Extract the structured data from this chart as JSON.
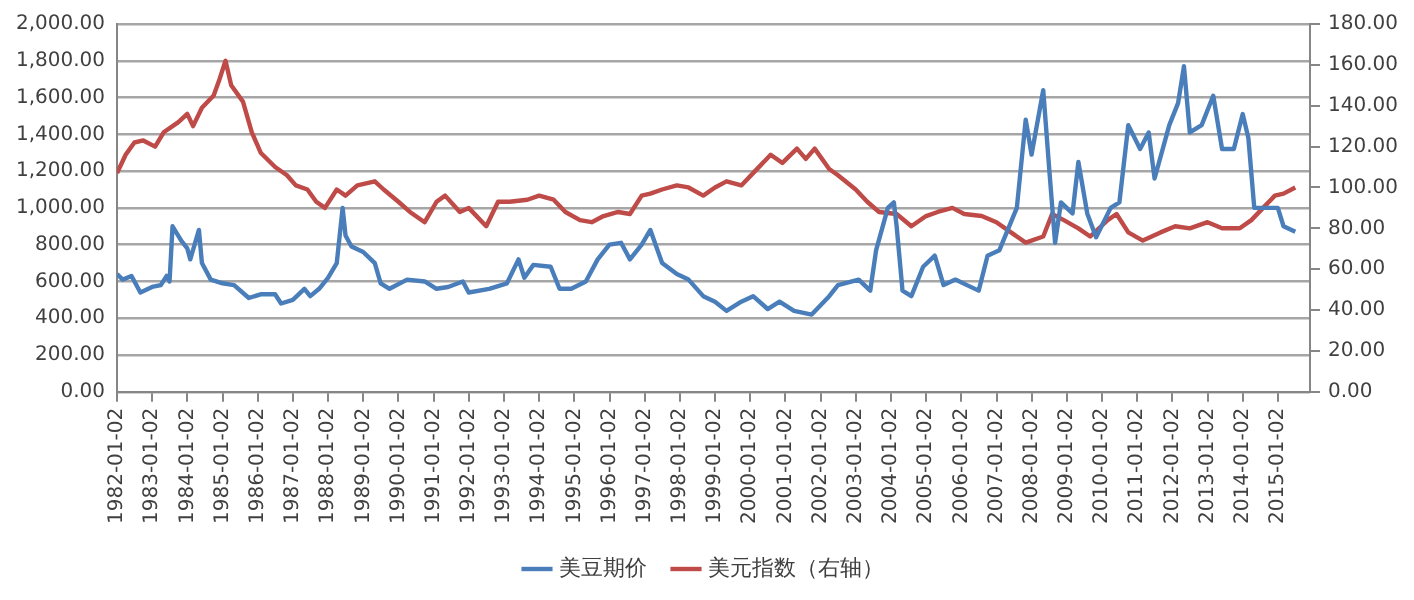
{
  "chart_data": {
    "type": "line",
    "xlim": [
      "1982-01-02",
      "2015-12"
    ],
    "xticks": [
      "1982-01-02",
      "1983-01-02",
      "1984-01-02",
      "1985-01-02",
      "1986-01-02",
      "1987-01-02",
      "1988-01-02",
      "1989-01-02",
      "1990-01-02",
      "1991-01-02",
      "1992-01-02",
      "1993-01-02",
      "1994-01-02",
      "1995-01-02",
      "1996-01-02",
      "1997-01-02",
      "1998-01-02",
      "1999-01-02",
      "2000-01-02",
      "2001-01-02",
      "2002-01-02",
      "2003-01-02",
      "2004-01-02",
      "2005-01-02",
      "2006-01-02",
      "2007-01-02",
      "2008-01-02",
      "2009-01-02",
      "2010-01-02",
      "2011-01-02",
      "2012-01-02",
      "2013-01-02",
      "2014-01-02",
      "2015-01-02"
    ],
    "ylim": [
      0,
      2000
    ],
    "yticks": [
      {
        "value": 0,
        "label": "0.00"
      },
      {
        "value": 200,
        "label": "200.00"
      },
      {
        "value": 400,
        "label": "400.00"
      },
      {
        "value": 600,
        "label": "600.00"
      },
      {
        "value": 800,
        "label": "800.00"
      },
      {
        "value": 1000,
        "label": "1,000.00"
      },
      {
        "value": 1200,
        "label": "1,200.00"
      },
      {
        "value": 1400,
        "label": "1,400.00"
      },
      {
        "value": 1600,
        "label": "1,600.00"
      },
      {
        "value": 1800,
        "label": "1,800.00"
      },
      {
        "value": 2000,
        "label": "2,000.00"
      }
    ],
    "y2lim": [
      0,
      180
    ],
    "y2ticks": [
      {
        "value": 0,
        "label": "0.00"
      },
      {
        "value": 20,
        "label": "20.00"
      },
      {
        "value": 40,
        "label": "40.00"
      },
      {
        "value": 60,
        "label": "60.00"
      },
      {
        "value": 80,
        "label": "80.00"
      },
      {
        "value": 100,
        "label": "100.00"
      },
      {
        "value": 120,
        "label": "120.00"
      },
      {
        "value": 140,
        "label": "140.00"
      },
      {
        "value": 160,
        "label": "160.00"
      },
      {
        "value": 180,
        "label": "180.00"
      }
    ],
    "grid": "y",
    "legend": "bottom",
    "marker": "none",
    "line_style": "solid",
    "series": [
      {
        "name": "美豆期价",
        "color": "#4a7ebb",
        "x": [
          "1982-01-02",
          "1982-03",
          "1982-06",
          "1982-09",
          "1983-01",
          "1983-04",
          "1983-06",
          "1983-07",
          "1983-08",
          "1983-11",
          "1984-01",
          "1984-02",
          "1984-05",
          "1984-06",
          "1984-09",
          "1985-01",
          "1985-05",
          "1985-10",
          "1986-02",
          "1986-07",
          "1986-09",
          "1987-01",
          "1987-05",
          "1987-07",
          "1987-10",
          "1988-01",
          "1988-04",
          "1988-06",
          "1988-07",
          "1988-09",
          "1989-01",
          "1989-05",
          "1989-07",
          "1989-10",
          "1990-04",
          "1990-10",
          "1991-02",
          "1991-06",
          "1991-11",
          "1992-01",
          "1992-08",
          "1993-02",
          "1993-06",
          "1993-08",
          "1993-11",
          "1994-05",
          "1994-08",
          "1994-12",
          "1995-05",
          "1995-09",
          "1996-01",
          "1996-05",
          "1996-08",
          "1996-12",
          "1997-03",
          "1997-07",
          "1997-12",
          "1998-04",
          "1998-09",
          "1999-01",
          "1999-05",
          "1999-10",
          "2000-02",
          "2000-07",
          "2000-11",
          "2001-04",
          "2001-10",
          "2002-04",
          "2002-07",
          "2003-02",
          "2003-06",
          "2003-08",
          "2003-12",
          "2004-02",
          "2004-03",
          "2004-05",
          "2004-08",
          "2004-12",
          "2005-04",
          "2005-07",
          "2005-11",
          "2006-03",
          "2006-07",
          "2006-10",
          "2007-02",
          "2007-08",
          "2007-11",
          "2008-01",
          "2008-05",
          "2008-07",
          "2008-09",
          "2008-11",
          "2009-03",
          "2009-05",
          "2009-08",
          "2009-11",
          "2010-04",
          "2010-07",
          "2010-10",
          "2011-02",
          "2011-05",
          "2011-07",
          "2011-12",
          "2012-03",
          "2012-05",
          "2012-07",
          "2012-11",
          "2013-03",
          "2013-06",
          "2013-10",
          "2014-01",
          "2014-03",
          "2014-05",
          "2014-09",
          "2015-01",
          "2015-03",
          "2015-07"
        ],
        "values": [
          640,
          610,
          630,
          540,
          570,
          580,
          630,
          600,
          900,
          820,
          780,
          720,
          880,
          700,
          610,
          590,
          580,
          510,
          530,
          530,
          480,
          500,
          560,
          520,
          560,
          620,
          700,
          1000,
          850,
          790,
          760,
          700,
          590,
          560,
          610,
          600,
          560,
          570,
          600,
          540,
          560,
          590,
          720,
          620,
          690,
          680,
          560,
          560,
          600,
          720,
          800,
          810,
          720,
          800,
          880,
          700,
          640,
          610,
          520,
          490,
          440,
          490,
          520,
          450,
          490,
          440,
          420,
          520,
          580,
          610,
          550,
          770,
          1000,
          1030,
          900,
          550,
          520,
          680,
          740,
          580,
          610,
          580,
          550,
          740,
          770,
          1000,
          1480,
          1290,
          1640,
          1220,
          810,
          1030,
          970,
          1250,
          970,
          840,
          1000,
          1030,
          1450,
          1320,
          1410,
          1160,
          1450,
          1570,
          1770,
          1410,
          1450,
          1610,
          1320,
          1320,
          1510,
          1380,
          1000,
          1000,
          1000,
          900,
          870
        ]
      },
      {
        "name": "美元指数（右轴）",
        "color": "#be4b48",
        "axis": "y2",
        "x": [
          "1982-01-02",
          "1982-04",
          "1982-07",
          "1982-10",
          "1983-02",
          "1983-05",
          "1983-10",
          "1984-01",
          "1984-03",
          "1984-06",
          "1984-10",
          "1984-12",
          "1985-02",
          "1985-04",
          "1985-08",
          "1985-11",
          "1986-02",
          "1986-07",
          "1986-11",
          "1987-02",
          "1987-06",
          "1987-09",
          "1987-12",
          "1988-04",
          "1988-07",
          "1988-11",
          "1989-05",
          "1989-08",
          "1990-01",
          "1990-05",
          "1990-10",
          "1991-02",
          "1991-05",
          "1991-10",
          "1992-01",
          "1992-07",
          "1992-11",
          "1993-03",
          "1993-09",
          "1994-01",
          "1994-06",
          "1994-10",
          "1995-03",
          "1995-07",
          "1995-11",
          "1996-04",
          "1996-08",
          "1996-12",
          "1997-03",
          "1997-07",
          "1997-12",
          "1998-04",
          "1998-09",
          "1999-01",
          "1999-05",
          "1999-10",
          "2000-02",
          "2000-08",
          "2000-12",
          "2001-05",
          "2001-08",
          "2001-11",
          "2002-04",
          "2002-07",
          "2003-01",
          "2003-05",
          "2003-09",
          "2004-03",
          "2004-08",
          "2005-01",
          "2005-05",
          "2005-10",
          "2006-02",
          "2006-08",
          "2007-01",
          "2007-06",
          "2007-11",
          "2008-05",
          "2008-08",
          "2008-12",
          "2009-05",
          "2009-09",
          "2010-03",
          "2010-06",
          "2010-10",
          "2011-03",
          "2011-09",
          "2012-02",
          "2012-07",
          "2013-01",
          "2013-06",
          "2013-12",
          "2014-04",
          "2014-08",
          "2014-12",
          "2015-03",
          "2015-07"
        ],
        "values": [
          107,
          116,
          122,
          123,
          120,
          127,
          132,
          136,
          130,
          139,
          145,
          153,
          162,
          150,
          142,
          127,
          117,
          110,
          106,
          101,
          99,
          93,
          90,
          99,
          96,
          101,
          103,
          99,
          93,
          88,
          83,
          93,
          96,
          88,
          90,
          81,
          93,
          93,
          94,
          96,
          94,
          88,
          84,
          83,
          86,
          88,
          87,
          96,
          97,
          99,
          101,
          100,
          96,
          100,
          103,
          101,
          107,
          116,
          112,
          119,
          114,
          119,
          109,
          106,
          99,
          93,
          88,
          87,
          81,
          86,
          88,
          90,
          87,
          86,
          83,
          78,
          73,
          76,
          87,
          84,
          80,
          76,
          84,
          87,
          78,
          74,
          78,
          81,
          80,
          83,
          80,
          80,
          84,
          90,
          96,
          97,
          100
        ]
      }
    ]
  }
}
